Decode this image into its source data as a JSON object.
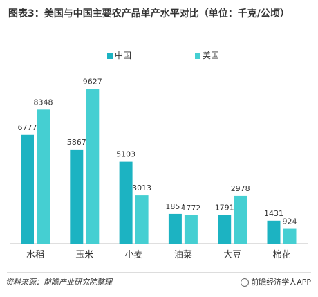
{
  "header": {
    "title": "图表3：美国与中国主要农产品单产水平对比（单位：千克/公顷）"
  },
  "footer": {
    "source": "资料来源：前瞻产业研究院整理",
    "brand": "前瞻经济学人APP"
  },
  "colors": {
    "china": "#1cb3c2",
    "usa": "#45cfd2",
    "axis": "#bfbfbf",
    "label": "#333333"
  },
  "chart_data": {
    "type": "bar",
    "title": "图表3：美国与中国主要农产品单产水平对比（单位：千克/公顷）",
    "xlabel": "",
    "ylabel": "",
    "categories": [
      "水稻",
      "玉米",
      "小麦",
      "油菜",
      "大豆",
      "棉花"
    ],
    "series": [
      {
        "name": "中国",
        "values": [
          6777,
          5867,
          5103,
          1857,
          1791,
          1431
        ]
      },
      {
        "name": "美国",
        "values": [
          8348,
          9627,
          3013,
          1772,
          2978,
          924
        ]
      }
    ],
    "ylim": [
      0,
      10000
    ],
    "grid": false,
    "legend": "top"
  }
}
